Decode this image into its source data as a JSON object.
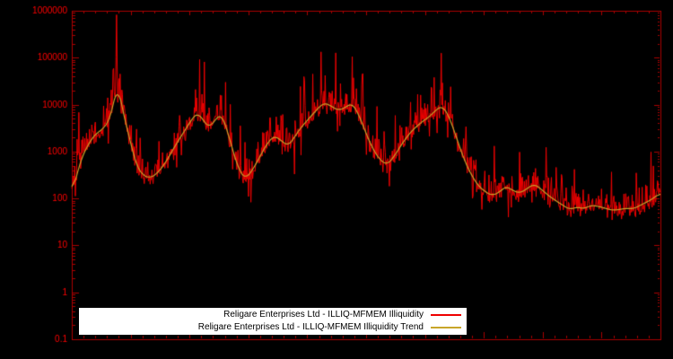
{
  "chart_data": {
    "type": "line",
    "title": "",
    "xlabel": "",
    "ylabel": "",
    "legend_position": "bottom-center",
    "grid": false,
    "colors": {
      "background": "#000000",
      "axis": "#aa0000",
      "tick_text": "#ff0000",
      "raw_series": "#ee0000",
      "trend_series": "#c8a52a",
      "legend_background": "#ffffff",
      "legend_text": "#000000"
    },
    "y_axis": {
      "scale": "log",
      "min": 0.1,
      "max": 1000000,
      "ticks": [
        [
          "1000000",
          6
        ],
        [
          "100000",
          5
        ],
        [
          "10000",
          4
        ],
        [
          "1000",
          3
        ],
        [
          "100",
          2
        ],
        [
          "10",
          1
        ],
        [
          "1",
          0
        ],
        [
          "0.1",
          -1
        ]
      ]
    },
    "x_axis": {
      "tick_labels": []
    },
    "series": [
      {
        "name": "Religare Enterprises Ltd - ILLIQ-MFMEM Illiquidity",
        "color": "#ee0000",
        "role": "raw"
      },
      {
        "name": "Religare Enterprises Ltd - ILLIQ-MFMEM Illiquidity Trend",
        "color": "#c8a52a",
        "role": "trend"
      }
    ],
    "n_points": 1000,
    "trend_anchors": [
      [
        0.0,
        120
      ],
      [
        0.008,
        300
      ],
      [
        0.016,
        700
      ],
      [
        0.025,
        1200
      ],
      [
        0.035,
        2000
      ],
      [
        0.045,
        2600
      ],
      [
        0.055,
        3200
      ],
      [
        0.065,
        5000
      ],
      [
        0.072,
        12000
      ],
      [
        0.078,
        30000
      ],
      [
        0.084,
        10000
      ],
      [
        0.092,
        4000
      ],
      [
        0.1,
        1500
      ],
      [
        0.11,
        500
      ],
      [
        0.12,
        320
      ],
      [
        0.132,
        270
      ],
      [
        0.145,
        340
      ],
      [
        0.158,
        550
      ],
      [
        0.17,
        1000
      ],
      [
        0.182,
        1800
      ],
      [
        0.195,
        3200
      ],
      [
        0.205,
        5200
      ],
      [
        0.215,
        6800
      ],
      [
        0.225,
        4200
      ],
      [
        0.235,
        3200
      ],
      [
        0.245,
        5200
      ],
      [
        0.255,
        6200
      ],
      [
        0.265,
        2600
      ],
      [
        0.275,
        900
      ],
      [
        0.285,
        380
      ],
      [
        0.295,
        260
      ],
      [
        0.308,
        420
      ],
      [
        0.32,
        800
      ],
      [
        0.332,
        1500
      ],
      [
        0.344,
        2200
      ],
      [
        0.356,
        1700
      ],
      [
        0.368,
        1300
      ],
      [
        0.38,
        2200
      ],
      [
        0.392,
        3600
      ],
      [
        0.404,
        5200
      ],
      [
        0.416,
        7800
      ],
      [
        0.428,
        11000
      ],
      [
        0.44,
        9500
      ],
      [
        0.452,
        7500
      ],
      [
        0.464,
        8500
      ],
      [
        0.476,
        11000
      ],
      [
        0.488,
        6000
      ],
      [
        0.5,
        2400
      ],
      [
        0.512,
        1100
      ],
      [
        0.524,
        650
      ],
      [
        0.536,
        520
      ],
      [
        0.548,
        800
      ],
      [
        0.56,
        1400
      ],
      [
        0.572,
        2300
      ],
      [
        0.584,
        3300
      ],
      [
        0.596,
        4400
      ],
      [
        0.608,
        5600
      ],
      [
        0.62,
        8000
      ],
      [
        0.63,
        9500
      ],
      [
        0.642,
        5200
      ],
      [
        0.654,
        1900
      ],
      [
        0.666,
        700
      ],
      [
        0.678,
        330
      ],
      [
        0.69,
        190
      ],
      [
        0.702,
        140
      ],
      [
        0.714,
        115
      ],
      [
        0.726,
        135
      ],
      [
        0.738,
        185
      ],
      [
        0.75,
        145
      ],
      [
        0.762,
        130
      ],
      [
        0.774,
        165
      ],
      [
        0.786,
        205
      ],
      [
        0.798,
        155
      ],
      [
        0.81,
        115
      ],
      [
        0.822,
        90
      ],
      [
        0.834,
        72
      ],
      [
        0.846,
        58
      ],
      [
        0.858,
        66
      ],
      [
        0.87,
        60
      ],
      [
        0.882,
        72
      ],
      [
        0.894,
        68
      ],
      [
        0.906,
        62
      ],
      [
        0.918,
        56
      ],
      [
        0.93,
        58
      ],
      [
        0.942,
        62
      ],
      [
        0.954,
        60
      ],
      [
        0.966,
        72
      ],
      [
        0.978,
        85
      ],
      [
        0.99,
        105
      ],
      [
        1.0,
        135
      ]
    ],
    "spikes": [
      [
        0.07,
        55000
      ],
      [
        0.076,
        820000
      ],
      [
        0.082,
        45000
      ],
      [
        0.21,
        21000
      ],
      [
        0.252,
        16000
      ],
      [
        0.3,
        110
      ],
      [
        0.43,
        42000
      ],
      [
        0.456,
        28000
      ],
      [
        0.476,
        105000
      ],
      [
        0.492,
        26000
      ],
      [
        0.616,
        38000
      ],
      [
        0.628,
        125000
      ],
      [
        0.644,
        24000
      ],
      [
        0.84,
        170
      ],
      [
        0.9,
        160
      ]
    ],
    "noise": {
      "seed": 7,
      "sigma_up": 0.22,
      "sigma_down": 0.1,
      "up_spike_prob": 0.05,
      "up_spike_max": 0.85,
      "down_spike_prob": 0.03,
      "down_spike_max": 0.5
    }
  }
}
